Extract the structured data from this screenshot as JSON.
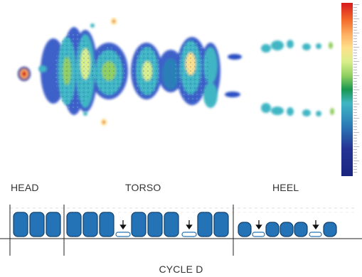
{
  "labels": {
    "head": "HEAD",
    "torso": "TORSO",
    "heel": "HEEL",
    "cycle": "CYCLE D"
  },
  "colors": {
    "segment_fill": "#2473b6",
    "segment_stroke": "#12406b",
    "accent": "#2473b6",
    "heat_high": "#d7191c",
    "heat_mid": "#fee08b",
    "heat_low": "#1a2580"
  }
}
